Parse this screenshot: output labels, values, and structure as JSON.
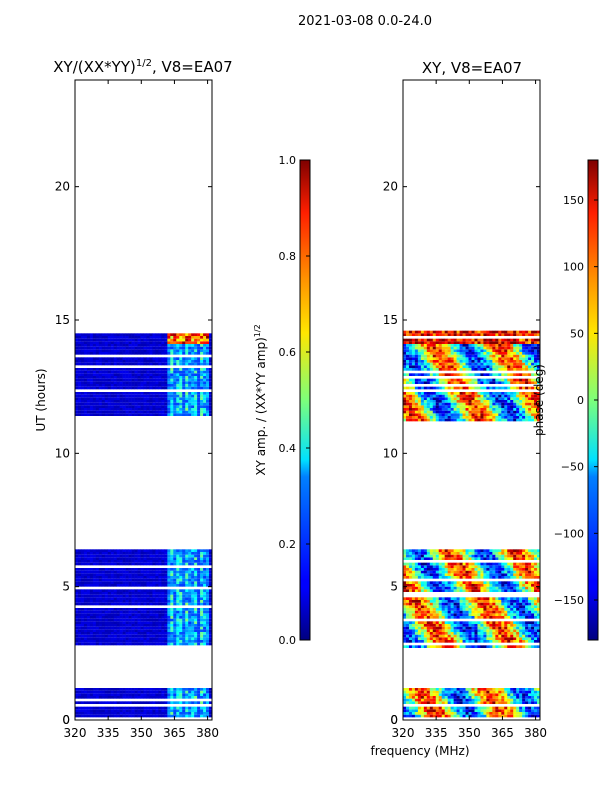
{
  "suptitle": "2021-03-08 0.0-24.0",
  "shared_xlabel": "frequency (MHz)",
  "chart_data": [
    {
      "type": "heatmap",
      "title_main": "XY/(XX*YY)",
      "title_sup": "1/2",
      "title_tail": ", V8=EA07",
      "xlim": [
        320,
        382
      ],
      "xticks": [
        320,
        335,
        350,
        365,
        380
      ],
      "ylim": [
        0,
        24
      ],
      "yticks": [
        0,
        5,
        10,
        15,
        20
      ],
      "ylabel": "UT (hours)",
      "data_time_blocks": [
        [
          0.0,
          1.2
        ],
        [
          2.7,
          6.4
        ],
        [
          11.2,
          14.6
        ]
      ],
      "colorbar": {
        "range": [
          0.0,
          1.0
        ],
        "ticks": [
          0.0,
          0.2,
          0.4,
          0.6,
          0.8,
          1.0
        ],
        "tick_labels": [
          "0.0",
          "0.2",
          "0.4",
          "0.6",
          "0.8",
          "1.0"
        ],
        "label_main": "XY amp. / (XX*YY amp)",
        "label_sup": "1/2"
      }
    },
    {
      "type": "heatmap",
      "title": "XY, V8=EA07",
      "xlim": [
        320,
        382
      ],
      "xticks": [
        320,
        335,
        350,
        365,
        380
      ],
      "ylim": [
        0,
        24
      ],
      "yticks": [
        0,
        5,
        10,
        15,
        20
      ],
      "data_time_blocks": [
        [
          0.0,
          1.2
        ],
        [
          2.7,
          6.4
        ],
        [
          11.2,
          14.6
        ]
      ],
      "colorbar": {
        "range": [
          -180,
          180
        ],
        "ticks": [
          -150,
          -100,
          -50,
          0,
          50,
          100,
          150
        ],
        "tick_labels": [
          "−150",
          "−100",
          "−50",
          "0",
          "50",
          "100",
          "150"
        ],
        "label": "phase (deg)"
      }
    }
  ]
}
